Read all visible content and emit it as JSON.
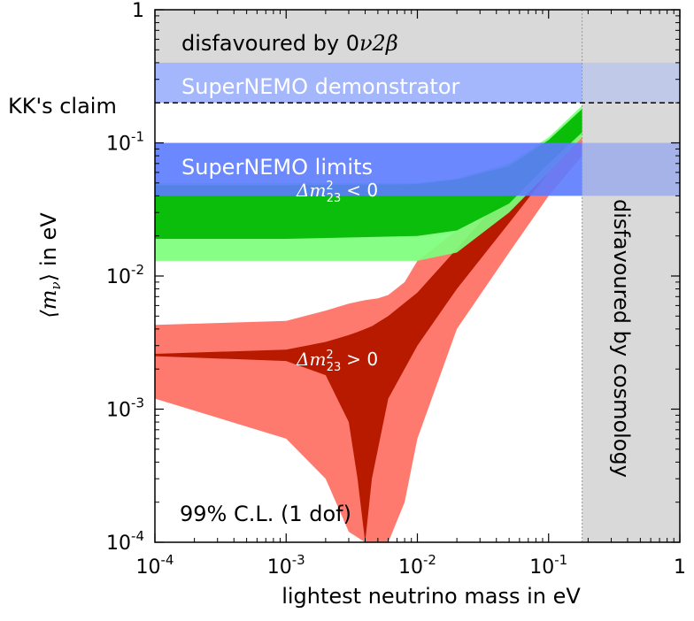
{
  "chart_data": {
    "type": "area",
    "x_axis": {
      "label": "lightest neutrino mass in eV",
      "scale": "log",
      "range": [
        0.0001,
        1
      ],
      "ticks": [
        {
          "value": 0.0001,
          "base": "10",
          "exp": "-4"
        },
        {
          "value": 0.001,
          "base": "10",
          "exp": "-3"
        },
        {
          "value": 0.01,
          "base": "10",
          "exp": "-2"
        },
        {
          "value": 0.1,
          "base": "10",
          "exp": "-1"
        },
        {
          "value": 1,
          "base": "1",
          "exp": ""
        }
      ]
    },
    "y_axis": {
      "label_math": "⟨m",
      "label_sub": "ν",
      "label_close": "⟩",
      "label_unit": "in eV",
      "scale": "log",
      "range": [
        0.0001,
        1
      ],
      "ticks": [
        {
          "value": 0.0001,
          "base": "10",
          "exp": "-4"
        },
        {
          "value": 0.001,
          "base": "10",
          "exp": "-3"
        },
        {
          "value": 0.01,
          "base": "10",
          "exp": "-2"
        },
        {
          "value": 0.1,
          "base": "10",
          "exp": "-1"
        },
        {
          "value": 1,
          "base": "1",
          "exp": ""
        }
      ]
    },
    "regions": [
      {
        "name": "disfavoured by 0ν2β",
        "label_plain": "disfavoured by 0",
        "label_math": "ν2β",
        "x": [
          0.0001,
          1
        ],
        "y": [
          0.2,
          1
        ],
        "color": "#d9d9d9"
      },
      {
        "name": "disfavoured by cosmology",
        "label_plain": "disfavoured by cosmology",
        "x": [
          0.18,
          1
        ],
        "y": [
          0.0001,
          1
        ],
        "color": "#d9d9d9"
      }
    ],
    "bands": [
      {
        "name": "SuperNEMO demonstrator",
        "label": "SuperNEMO demonstrator",
        "y": [
          0.2,
          0.4
        ],
        "color": "#9db2ff"
      },
      {
        "name": "SuperNEMO limits",
        "label": "SuperNEMO limits",
        "y": [
          0.04,
          0.1
        ],
        "color": "#5c7bff"
      }
    ],
    "reference_lines": [
      {
        "name": "KK's claim",
        "label": "KK's claim",
        "y": 0.2,
        "style": "dashed"
      }
    ],
    "series": [
      {
        "name": "Δm²₂₃ < 0",
        "label_math": "Δm",
        "label_sup": "2",
        "label_sub": "23",
        "label_rel": "< 0",
        "ordering": "inverted",
        "colors": {
          "outer": "#7dff7d",
          "inner": "#00b800"
        },
        "outer_band": {
          "x": [
            0.0001,
            0.001,
            0.01,
            0.02,
            0.05,
            0.1,
            0.18
          ],
          "lower": [
            0.013,
            0.013,
            0.013,
            0.015,
            0.03,
            0.06,
            0.11
          ],
          "upper": [
            0.05,
            0.05,
            0.05,
            0.054,
            0.07,
            0.11,
            0.19
          ]
        },
        "inner_band": {
          "x": [
            0.0001,
            0.001,
            0.01,
            0.02,
            0.05,
            0.1,
            0.18
          ],
          "lower": [
            0.019,
            0.019,
            0.02,
            0.022,
            0.035,
            0.07,
            0.12
          ],
          "upper": [
            0.048,
            0.048,
            0.049,
            0.053,
            0.067,
            0.105,
            0.18
          ]
        }
      },
      {
        "name": "Δm²₂₃ > 0",
        "label_math": "Δm",
        "label_sup": "2",
        "label_sub": "23",
        "label_rel": "> 0",
        "ordering": "normal",
        "colors": {
          "outer": "#ff7a6e",
          "inner": "#b81a00"
        },
        "outer_band": {
          "x": [
            0.0001,
            0.001,
            0.002,
            0.003,
            0.004,
            0.005,
            0.006,
            0.008,
            0.01,
            0.02,
            0.05,
            0.1,
            0.18
          ],
          "lower": [
            0.0012,
            0.0006,
            0.0003,
            0.00012,
            0.0001,
            0.0001,
            0.0001,
            0.0002,
            0.0006,
            0.004,
            0.015,
            0.04,
            0.08
          ],
          "upper": [
            0.0043,
            0.0046,
            0.0055,
            0.0062,
            0.0066,
            0.0068,
            0.0072,
            0.009,
            0.013,
            0.022,
            0.052,
            0.1,
            0.18
          ]
        },
        "inner_band": {
          "x": [
            0.0001,
            0.001,
            0.002,
            0.003,
            0.0035,
            0.004,
            0.0045,
            0.006,
            0.01,
            0.02,
            0.05,
            0.1,
            0.18
          ],
          "lower": [
            0.0025,
            0.0023,
            0.0018,
            0.0008,
            0.0003,
            0.0001,
            0.0003,
            0.0012,
            0.003,
            0.008,
            0.025,
            0.06,
            0.12
          ],
          "upper": [
            0.0026,
            0.0028,
            0.0032,
            0.0036,
            0.0038,
            0.004,
            0.0042,
            0.005,
            0.0075,
            0.016,
            0.045,
            0.09,
            0.17
          ]
        }
      }
    ],
    "annotations": [
      {
        "name": "confidence-level",
        "text": "99% C.L. (1 dof)"
      }
    ]
  }
}
